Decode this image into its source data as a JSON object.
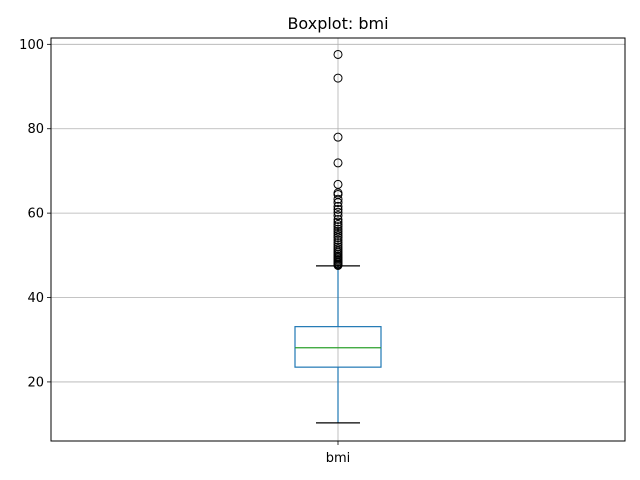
{
  "chart_data": {
    "type": "boxplot",
    "title": "Boxplot: bmi",
    "xlabel": "",
    "ylabel": "",
    "categories": [
      "bmi"
    ],
    "ylim": [
      6.0,
      101.5
    ],
    "yticks": [
      20,
      40,
      60,
      80,
      100
    ],
    "grid": true,
    "legend": "none",
    "series": [
      {
        "whisker_low": 10.3,
        "q1": 23.5,
        "median": 28.1,
        "q3": 33.1,
        "whisker_high": 47.5,
        "outliers": [
          47.6,
          47.8,
          48.0,
          48.3,
          48.6,
          48.9,
          49.2,
          49.5,
          49.8,
          50.2,
          50.6,
          51.0,
          51.5,
          52.0,
          52.5,
          53.0,
          53.6,
          54.2,
          54.7,
          55.2,
          55.7,
          56.2,
          56.8,
          57.3,
          57.9,
          58.5,
          59.4,
          60.2,
          60.9,
          61.6,
          62.5,
          63.3,
          64.4,
          64.8,
          66.8,
          71.9,
          78.0,
          92.0,
          97.6
        ]
      }
    ],
    "colors": {
      "box": "#1f77b4",
      "median": "#2ca02c",
      "whisker": "#1f77b4",
      "cap": "#000000",
      "outlier": "#000000",
      "grid": "#b0b0b0"
    }
  }
}
